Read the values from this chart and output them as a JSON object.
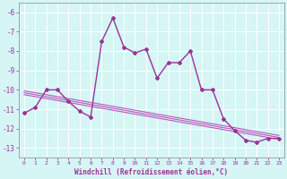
{
  "xlabel": "Windchill (Refroidissement éolien,°C)",
  "x": [
    0,
    1,
    2,
    3,
    4,
    5,
    6,
    7,
    8,
    9,
    10,
    11,
    12,
    13,
    14,
    15,
    16,
    17,
    18,
    19,
    20,
    21,
    22,
    23
  ],
  "y_line": [
    -11.2,
    -10.9,
    -10.0,
    -10.0,
    -10.6,
    -11.1,
    -11.4,
    -7.5,
    -6.3,
    -7.8,
    -8.1,
    -7.9,
    -9.4,
    -8.6,
    -8.6,
    -8.0,
    -10.0,
    -10.0,
    -11.5,
    -12.1,
    -12.6,
    -12.7,
    -12.5,
    -12.5
  ],
  "reg_lines": [
    [
      -10.05,
      -10.15,
      -10.25,
      -10.35,
      -10.45,
      -10.55,
      -10.65,
      -10.75,
      -10.85,
      -10.95,
      -11.05,
      -11.15,
      -11.25,
      -11.35,
      -11.45,
      -11.55,
      -11.65,
      -11.75,
      -11.85,
      -11.95,
      -12.05,
      -12.15,
      -12.25,
      -12.35
    ],
    [
      -10.15,
      -10.25,
      -10.35,
      -10.45,
      -10.55,
      -10.65,
      -10.75,
      -10.85,
      -10.95,
      -11.05,
      -11.15,
      -11.25,
      -11.35,
      -11.45,
      -11.55,
      -11.65,
      -11.75,
      -11.85,
      -11.95,
      -12.05,
      -12.15,
      -12.25,
      -12.35,
      -12.45
    ],
    [
      -10.25,
      -10.35,
      -10.45,
      -10.55,
      -10.65,
      -10.75,
      -10.85,
      -10.95,
      -11.05,
      -11.15,
      -11.25,
      -11.35,
      -11.45,
      -11.55,
      -11.65,
      -11.75,
      -11.85,
      -11.95,
      -12.05,
      -12.15,
      -12.25,
      -12.35,
      -12.45,
      -12.55
    ]
  ],
  "ylim": [
    -13.5,
    -5.5
  ],
  "xlim": [
    -0.5,
    23.5
  ],
  "yticks": [
    -13,
    -12,
    -11,
    -10,
    -9,
    -8,
    -7,
    -6
  ],
  "xticks": [
    0,
    1,
    2,
    3,
    4,
    5,
    6,
    7,
    8,
    9,
    10,
    11,
    12,
    13,
    14,
    15,
    16,
    17,
    18,
    19,
    20,
    21,
    22,
    23
  ],
  "line_color": "#993399",
  "reg_color": "#bb55bb",
  "bg_color": "#d6f5f5",
  "grid_color": "#aadddd",
  "marker": "D",
  "marker_size": 2,
  "line_width": 1.0
}
